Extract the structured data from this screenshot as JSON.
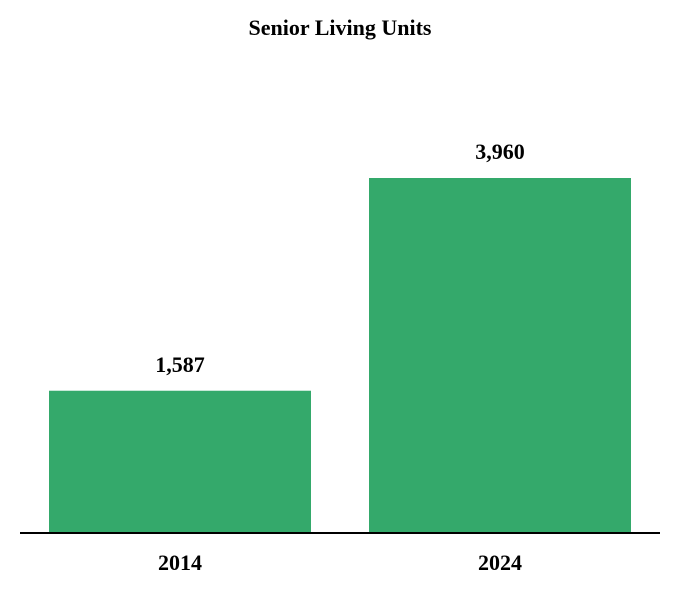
{
  "chart_data": {
    "type": "bar",
    "title": "Senior Living Units",
    "categories": [
      "2014",
      "2024"
    ],
    "values": [
      1587,
      3960
    ],
    "value_labels": [
      "1,587",
      "3,960"
    ],
    "color": "#34a96b"
  }
}
